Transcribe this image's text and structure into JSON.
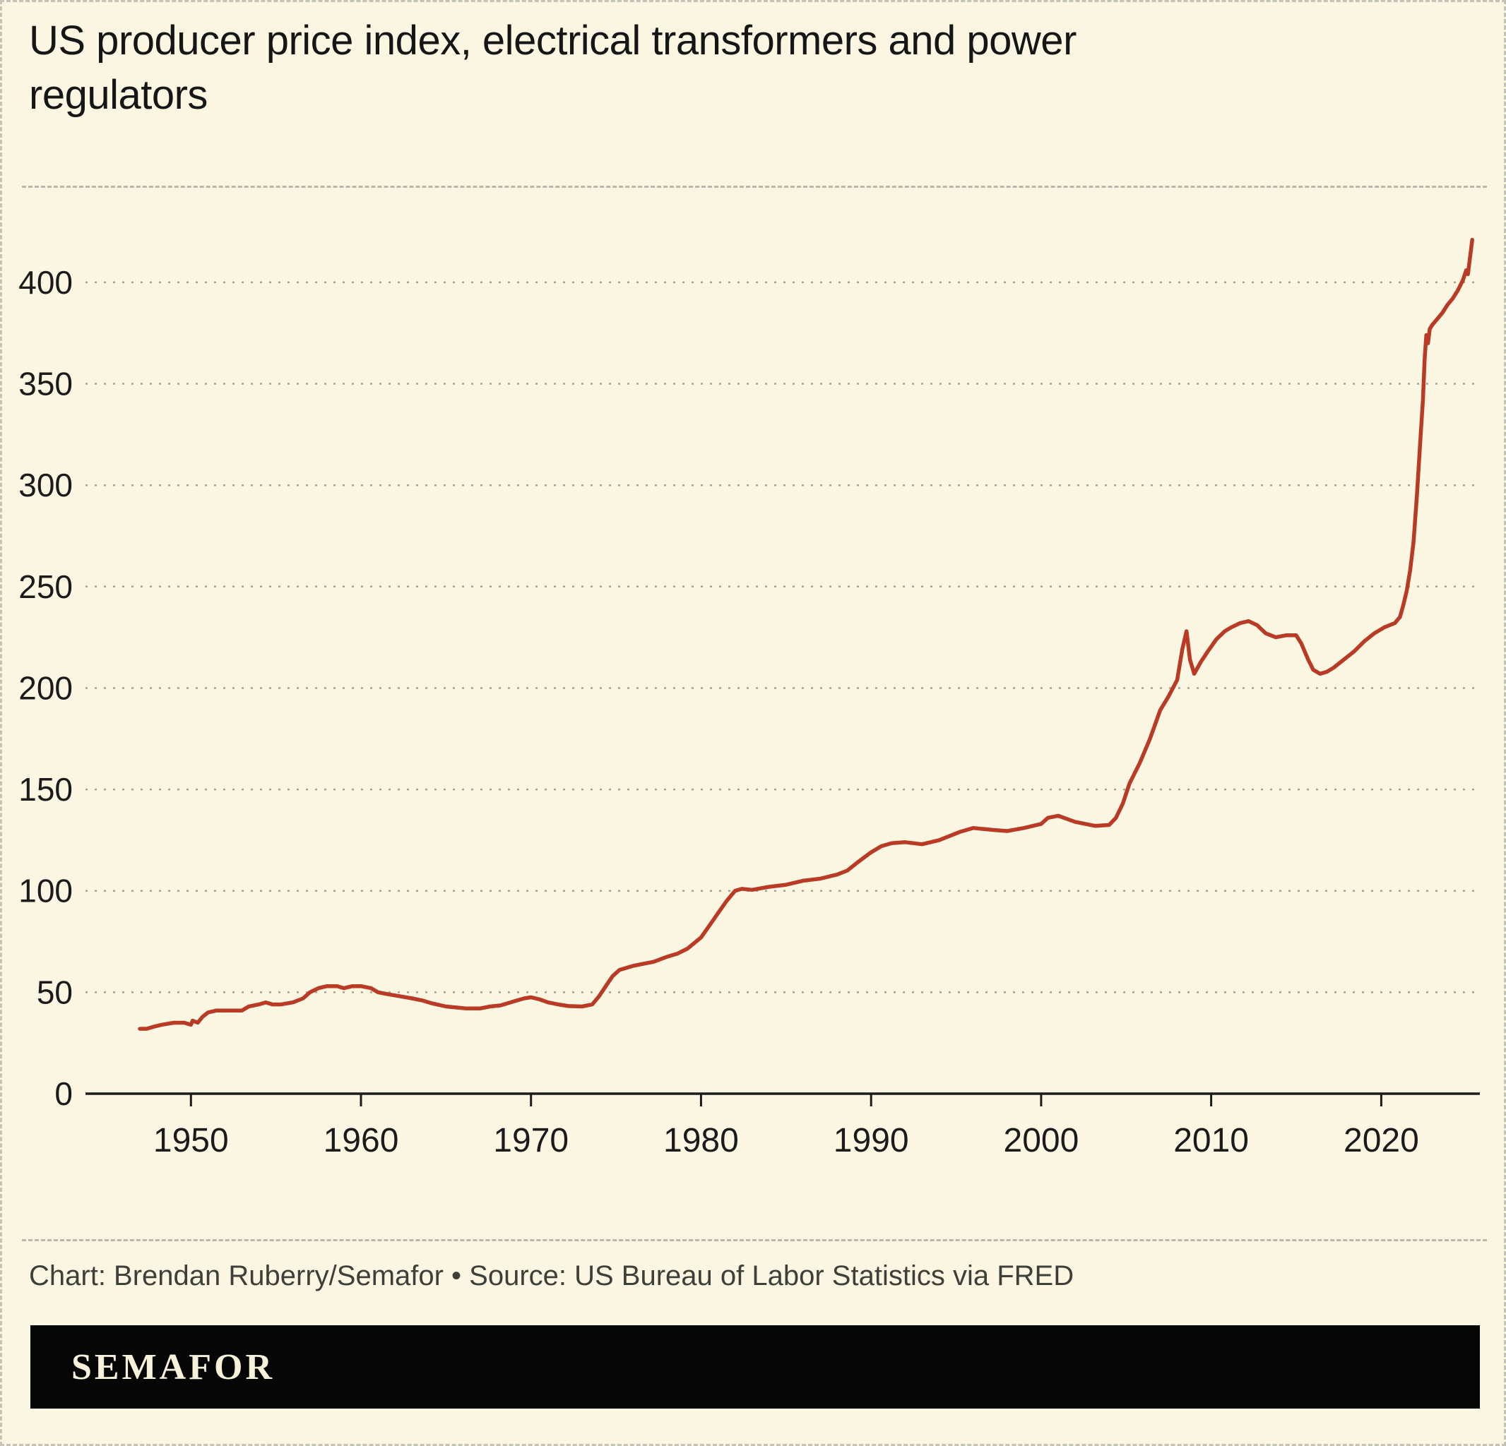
{
  "footer": {
    "credit": "Chart: Brendan Ruberry/Semafor • Source: US Bureau of Labor Statistics via FRED",
    "logo": "SEMAFOR"
  },
  "chart_data": {
    "type": "line",
    "title": "US producer price index, electrical transformers and power regulators",
    "xlabel": "",
    "ylabel": "",
    "x_ticks": [
      1950,
      1960,
      1970,
      1980,
      1990,
      2000,
      2010,
      2020
    ],
    "y_ticks": [
      0,
      50,
      100,
      150,
      200,
      250,
      300,
      350,
      400
    ],
    "xlim": [
      1943.8,
      2025.8
    ],
    "ylim": [
      0,
      440
    ],
    "grid": true,
    "legend": false,
    "colors": {
      "background": "#faf6e2",
      "line": "#b93b26",
      "grid": "#a3a396",
      "axis": "#1b1b1b",
      "text": "#1b1b1b"
    },
    "series": [
      {
        "name": "US producer price index, electrical transformers and power regulators",
        "points": [
          [
            1947.0,
            32
          ],
          [
            1947.4,
            32
          ],
          [
            1947.8,
            33
          ],
          [
            1948.3,
            34
          ],
          [
            1949.0,
            35
          ],
          [
            1949.6,
            35
          ],
          [
            1950.0,
            34
          ],
          [
            1950.1,
            36
          ],
          [
            1950.4,
            35
          ],
          [
            1950.7,
            38
          ],
          [
            1951.0,
            40
          ],
          [
            1951.5,
            41
          ],
          [
            1952.0,
            41
          ],
          [
            1953.0,
            41
          ],
          [
            1953.4,
            43
          ],
          [
            1954.0,
            44
          ],
          [
            1954.4,
            45
          ],
          [
            1954.8,
            44
          ],
          [
            1955.3,
            44
          ],
          [
            1956.0,
            45
          ],
          [
            1956.6,
            47
          ],
          [
            1957.0,
            50
          ],
          [
            1957.5,
            52
          ],
          [
            1958.0,
            53
          ],
          [
            1958.6,
            53
          ],
          [
            1959.0,
            52
          ],
          [
            1959.5,
            53
          ],
          [
            1960.0,
            53
          ],
          [
            1960.6,
            52
          ],
          [
            1961.0,
            50
          ],
          [
            1961.6,
            49
          ],
          [
            1962.3,
            48
          ],
          [
            1963.0,
            47
          ],
          [
            1963.6,
            46
          ],
          [
            1964.2,
            44.5
          ],
          [
            1965.0,
            43
          ],
          [
            1965.6,
            42.5
          ],
          [
            1966.2,
            42
          ],
          [
            1967.0,
            42
          ],
          [
            1967.6,
            43
          ],
          [
            1968.2,
            43.5
          ],
          [
            1969.0,
            45.5
          ],
          [
            1969.6,
            47
          ],
          [
            1970.0,
            47.5
          ],
          [
            1970.5,
            46.5
          ],
          [
            1971.0,
            45
          ],
          [
            1971.6,
            44
          ],
          [
            1972.2,
            43.2
          ],
          [
            1973.0,
            43
          ],
          [
            1973.6,
            44
          ],
          [
            1974.0,
            48
          ],
          [
            1974.4,
            53
          ],
          [
            1974.8,
            58
          ],
          [
            1975.2,
            61
          ],
          [
            1976.0,
            63
          ],
          [
            1976.6,
            64
          ],
          [
            1977.2,
            65
          ],
          [
            1978.0,
            67.5
          ],
          [
            1978.6,
            69
          ],
          [
            1979.2,
            71.5
          ],
          [
            1980.0,
            77
          ],
          [
            1980.5,
            83
          ],
          [
            1981.0,
            89
          ],
          [
            1981.5,
            95
          ],
          [
            1982.0,
            100
          ],
          [
            1982.4,
            101
          ],
          [
            1983.0,
            100.5
          ],
          [
            1984.0,
            102
          ],
          [
            1985.0,
            103
          ],
          [
            1986.0,
            105
          ],
          [
            1987.0,
            106
          ],
          [
            1988.0,
            108
          ],
          [
            1988.6,
            110
          ],
          [
            1989.2,
            114
          ],
          [
            1990.0,
            119
          ],
          [
            1990.6,
            122
          ],
          [
            1991.2,
            123.5
          ],
          [
            1992.0,
            124
          ],
          [
            1993.0,
            123
          ],
          [
            1994.0,
            125
          ],
          [
            1994.6,
            127
          ],
          [
            1995.2,
            129
          ],
          [
            1996.0,
            131
          ],
          [
            1996.6,
            130.5
          ],
          [
            1997.2,
            130
          ],
          [
            1998.0,
            129.5
          ],
          [
            1999.0,
            131
          ],
          [
            2000.0,
            133
          ],
          [
            2000.4,
            136
          ],
          [
            2001.0,
            137
          ],
          [
            2001.5,
            135.5
          ],
          [
            2002.0,
            134
          ],
          [
            2002.6,
            133
          ],
          [
            2003.2,
            132
          ],
          [
            2004.0,
            132.5
          ],
          [
            2004.4,
            136
          ],
          [
            2004.8,
            143
          ],
          [
            2005.2,
            153
          ],
          [
            2005.8,
            163
          ],
          [
            2006.4,
            175
          ],
          [
            2007.0,
            189
          ],
          [
            2007.5,
            196
          ],
          [
            2008.0,
            204
          ],
          [
            2008.3,
            219
          ],
          [
            2008.55,
            228
          ],
          [
            2008.75,
            214
          ],
          [
            2009.0,
            207
          ],
          [
            2009.4,
            213
          ],
          [
            2009.8,
            218
          ],
          [
            2010.3,
            224
          ],
          [
            2010.8,
            228
          ],
          [
            2011.2,
            230
          ],
          [
            2011.7,
            232
          ],
          [
            2012.2,
            233
          ],
          [
            2012.7,
            231
          ],
          [
            2013.2,
            227
          ],
          [
            2013.8,
            225
          ],
          [
            2014.4,
            226
          ],
          [
            2015.0,
            226
          ],
          [
            2015.3,
            222
          ],
          [
            2015.7,
            214
          ],
          [
            2016.0,
            209
          ],
          [
            2016.4,
            207
          ],
          [
            2016.8,
            208
          ],
          [
            2017.2,
            210
          ],
          [
            2017.8,
            214
          ],
          [
            2018.4,
            218
          ],
          [
            2019.0,
            223
          ],
          [
            2019.6,
            227
          ],
          [
            2020.2,
            230
          ],
          [
            2020.8,
            232
          ],
          [
            2021.1,
            235
          ],
          [
            2021.3,
            241
          ],
          [
            2021.5,
            248
          ],
          [
            2021.7,
            258
          ],
          [
            2021.9,
            272
          ],
          [
            2022.1,
            295
          ],
          [
            2022.3,
            322
          ],
          [
            2022.45,
            342
          ],
          [
            2022.55,
            362
          ],
          [
            2022.65,
            374
          ],
          [
            2022.75,
            370
          ],
          [
            2022.85,
            377
          ],
          [
            2023.0,
            379
          ],
          [
            2023.3,
            382
          ],
          [
            2023.6,
            385
          ],
          [
            2023.9,
            389
          ],
          [
            2024.2,
            392
          ],
          [
            2024.5,
            396
          ],
          [
            2024.8,
            401
          ],
          [
            2025.0,
            406
          ],
          [
            2025.1,
            404
          ],
          [
            2025.2,
            411
          ],
          [
            2025.35,
            421
          ]
        ]
      }
    ]
  }
}
